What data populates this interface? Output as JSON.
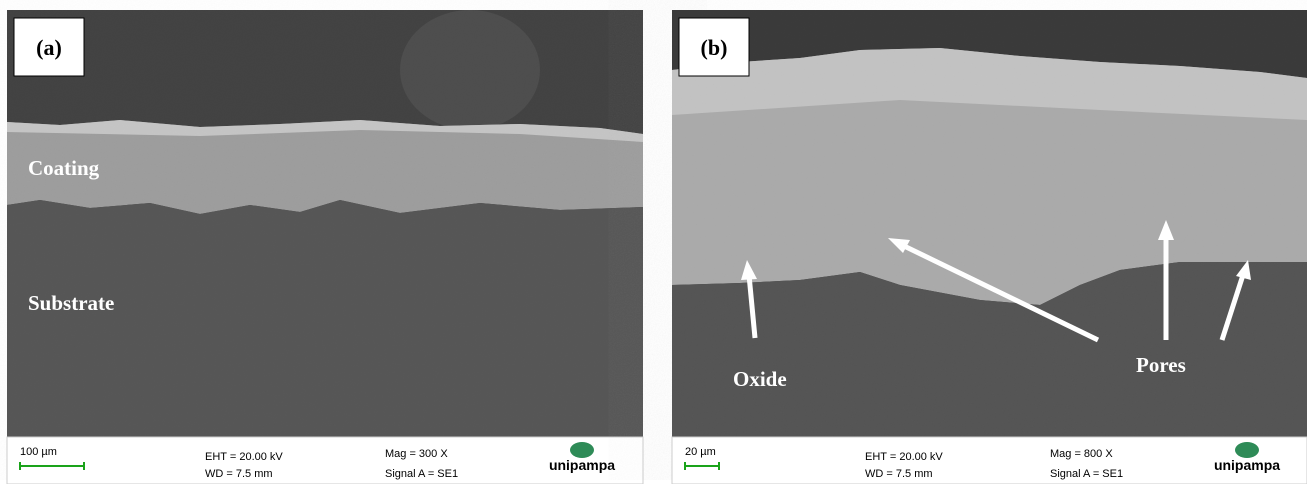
{
  "panels": [
    {
      "label": "(a)",
      "annotations": [
        "Coating",
        "Substrate"
      ],
      "scale_bar": "100 µm",
      "eht": "EHT = 20.00 kV",
      "wd": "WD = 7.5 mm",
      "mag": "Mag =   300 X",
      "signal": "Signal A = SE1",
      "logo": "unipampa"
    },
    {
      "label": "(b)",
      "annotations": [
        "Oxide",
        "Pores"
      ],
      "scale_bar": "20 µm",
      "eht": "EHT = 20.00 kV",
      "wd": "WD = 7.5 mm",
      "mag": "Mag =   800 X",
      "signal": "Signal A = SE1",
      "logo": "unipampa"
    }
  ]
}
